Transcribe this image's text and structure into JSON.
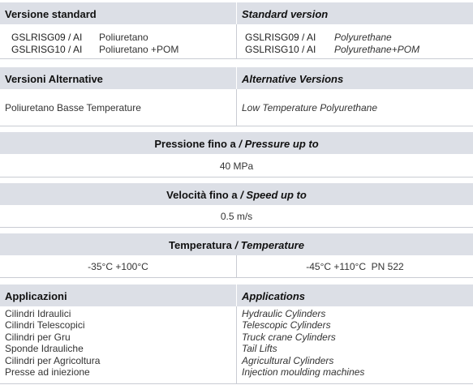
{
  "standard": {
    "header_it": "Versione standard",
    "header_en": "Standard version",
    "rows": [
      {
        "code": "GSLRISG09 / AI",
        "mat_it": "Poliuretano",
        "mat_en": "Polyurethane"
      },
      {
        "code": "GSLRISG10 / AI",
        "mat_it": "Poliuretano +POM",
        "mat_en": "Polyurethane+POM"
      }
    ]
  },
  "alternative": {
    "header_it": "Versioni Alternative",
    "header_en": "Alternative Versions",
    "value_it": "Poliuretano Basse Temperature",
    "value_en": "Low Temperature Polyurethane"
  },
  "pressure": {
    "label_it": "Pressione fino a ",
    "label_en": "/ Pressure up to",
    "value": "40 MPa"
  },
  "speed": {
    "label_it": "Velocità fino a ",
    "label_en": "/ Speed up to",
    "value": "0.5 m/s"
  },
  "temperature": {
    "label_it": "Temperatura ",
    "label_en": "/ Temperature",
    "value_left": "-35°C +100°C",
    "value_right": "-45°C +110°C  PN 522"
  },
  "applications": {
    "header_it": "Applicazioni",
    "header_en": "Applications",
    "items_it": [
      "Cilindri Idraulici",
      "Cilindri Telescopici",
      "Cilindri per Gru",
      "Sponde Idrauliche",
      "Cilindri per Agricoltura",
      "Presse ad iniezione"
    ],
    "items_en": [
      "Hydraulic Cylinders",
      "Telescopic Cylinders",
      "Truck crane Cylinders",
      "Tail Lifts",
      "Agricultural Cylinders",
      "Injection moulding machines"
    ]
  }
}
